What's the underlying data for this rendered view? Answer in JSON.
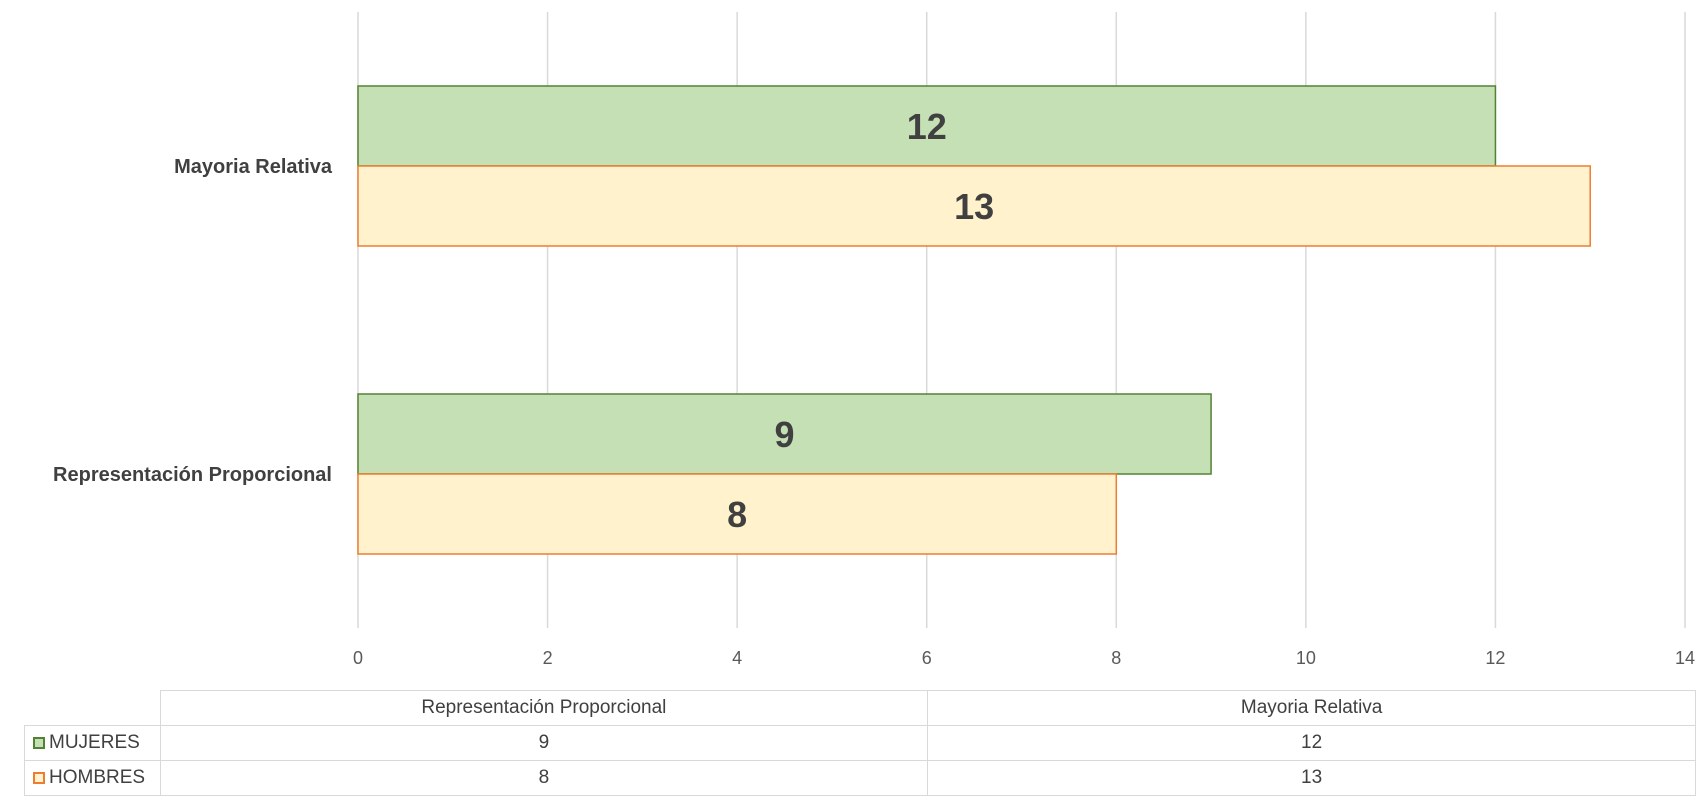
{
  "chart_data": {
    "type": "bar",
    "orientation": "horizontal",
    "categories": [
      "Representación Proporcional",
      "Mayoria Relativa"
    ],
    "series": [
      {
        "name": "MUJERES",
        "values": [
          9,
          12
        ],
        "fill": "#c5e0b4",
        "stroke": "#548235"
      },
      {
        "name": "HOMBRES",
        "values": [
          8,
          13
        ],
        "fill": "#fff2cc",
        "stroke": "#ed7d31"
      }
    ],
    "xlim": [
      0,
      14
    ],
    "x_ticks": [
      "0",
      "2",
      "4",
      "6",
      "8",
      "10",
      "12",
      "14"
    ],
    "data_labels": true,
    "grid": "vertical",
    "legend": "data-table-bottom"
  },
  "table": {
    "headers": [
      "Representación Proporcional",
      "Mayoria Relativa"
    ],
    "rows": [
      {
        "name": "MUJERES",
        "values": [
          "9",
          "12"
        ]
      },
      {
        "name": "HOMBRES",
        "values": [
          "8",
          "13"
        ]
      }
    ]
  }
}
